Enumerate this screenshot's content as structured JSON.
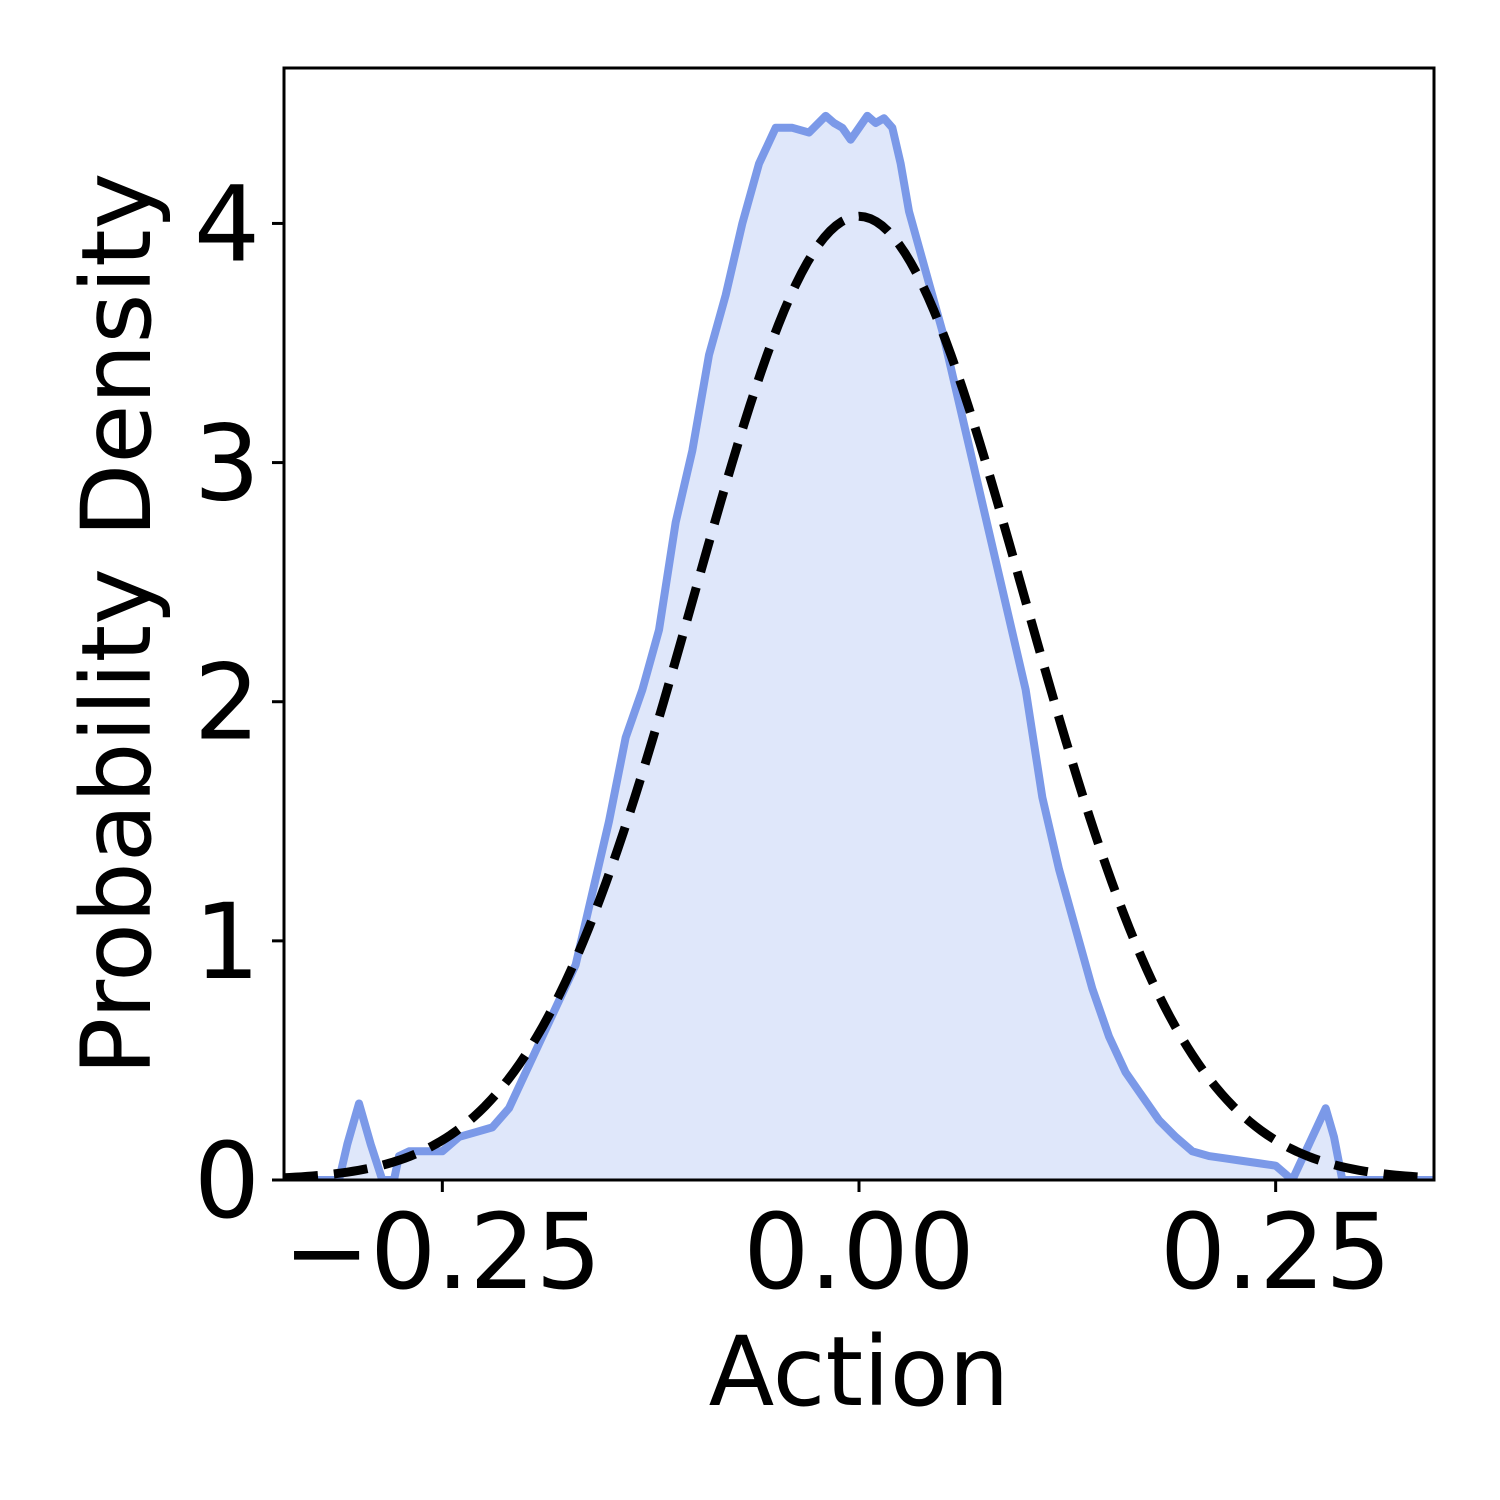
{
  "chart_data": {
    "type": "area",
    "xlabel": "Action",
    "ylabel": "Probability Density",
    "xlim": [
      -0.345,
      0.345
    ],
    "ylim": [
      0,
      4.65
    ],
    "x_ticks": [
      -0.25,
      0.0,
      0.25
    ],
    "x_tick_labels": [
      "−0.25",
      "0.00",
      "0.25"
    ],
    "y_ticks": [
      0,
      1,
      2,
      3,
      4
    ],
    "y_tick_labels": [
      "0",
      "1",
      "2",
      "3",
      "4"
    ],
    "grid": false,
    "legend": "none",
    "series": [
      {
        "style": "filled-solid",
        "color": "#7b99e8",
        "fill_color": "#dfe7fa",
        "x": [
          -0.345,
          -0.312,
          -0.307,
          -0.3,
          -0.293,
          -0.286,
          -0.279,
          -0.276,
          -0.27,
          -0.26,
          -0.25,
          -0.24,
          -0.23,
          -0.22,
          -0.21,
          -0.2,
          -0.19,
          -0.18,
          -0.17,
          -0.16,
          -0.15,
          -0.14,
          -0.13,
          -0.12,
          -0.11,
          -0.1,
          -0.09,
          -0.08,
          -0.07,
          -0.06,
          -0.05,
          -0.04,
          -0.03,
          -0.02,
          -0.015,
          -0.01,
          -0.005,
          0.0,
          0.005,
          0.01,
          0.015,
          0.02,
          0.025,
          0.03,
          0.04,
          0.05,
          0.06,
          0.07,
          0.08,
          0.09,
          0.1,
          0.11,
          0.12,
          0.13,
          0.14,
          0.15,
          0.16,
          0.17,
          0.18,
          0.19,
          0.2,
          0.21,
          0.22,
          0.23,
          0.24,
          0.25,
          0.26,
          0.27,
          0.28,
          0.285,
          0.29,
          0.295,
          0.3,
          0.305,
          0.31,
          0.345
        ],
        "y": [
          0.0,
          0.0,
          0.15,
          0.32,
          0.15,
          0.0,
          0.0,
          0.1,
          0.12,
          0.12,
          0.12,
          0.18,
          0.2,
          0.22,
          0.3,
          0.45,
          0.6,
          0.75,
          0.9,
          1.2,
          1.5,
          1.85,
          2.05,
          2.3,
          2.75,
          3.05,
          3.45,
          3.7,
          4.0,
          4.25,
          4.4,
          4.4,
          4.38,
          4.45,
          4.42,
          4.4,
          4.35,
          4.4,
          4.45,
          4.42,
          4.44,
          4.4,
          4.25,
          4.05,
          3.8,
          3.55,
          3.25,
          2.95,
          2.65,
          2.35,
          2.05,
          1.6,
          1.3,
          1.05,
          0.8,
          0.6,
          0.45,
          0.35,
          0.25,
          0.18,
          0.12,
          0.1,
          0.09,
          0.08,
          0.07,
          0.06,
          0.0,
          0.15,
          0.3,
          0.18,
          0.0,
          0.0,
          0.0,
          0.0,
          0.0,
          0.0
        ]
      },
      {
        "style": "dashed",
        "color": "#000000",
        "distribution": "normal",
        "mean": 0.0,
        "std": 0.099,
        "samples": 200
      }
    ]
  }
}
